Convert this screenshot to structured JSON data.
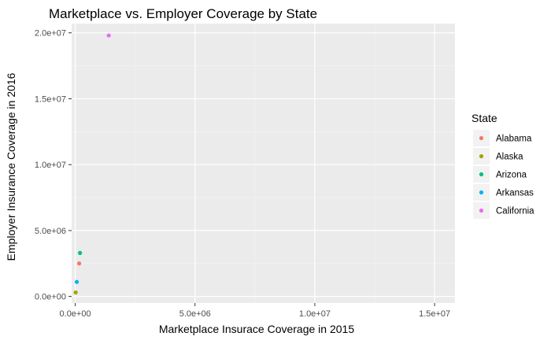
{
  "chart_data": {
    "type": "scatter",
    "title": "Marketplace vs. Employer Coverage by State",
    "xlabel": "Marketplace Insurace Coverage in 2015",
    "ylabel": "Employer Insurance Coverage in 2016",
    "xlim": [
      -150000,
      15850000
    ],
    "ylim": [
      -500000,
      20700000
    ],
    "x_ticks": [
      0,
      5000000,
      10000000,
      15000000
    ],
    "x_tick_labels": [
      "0.0e+00",
      "5.0e+06",
      "1.0e+07",
      "1.5e+07"
    ],
    "y_ticks": [
      0,
      5000000,
      10000000,
      15000000,
      20000000
    ],
    "y_tick_labels": [
      "0.0e+00",
      "5.0e+06",
      "1.0e+07",
      "1.5e+07",
      "2.0e+07"
    ],
    "grid": true,
    "legend": {
      "title": "State",
      "position": "right"
    },
    "series": [
      {
        "name": "Alabama",
        "color": "#F8766D",
        "points": [
          [
            165000,
            2500000
          ]
        ]
      },
      {
        "name": "Alaska",
        "color": "#A3A500",
        "points": [
          [
            18000,
            300000
          ]
        ]
      },
      {
        "name": "Arizona",
        "color": "#00BF7D",
        "points": [
          [
            200000,
            3300000
          ]
        ]
      },
      {
        "name": "Arkansas",
        "color": "#00B0F6",
        "points": [
          [
            65000,
            1100000
          ]
        ]
      },
      {
        "name": "California",
        "color": "#E76BF3",
        "points": [
          [
            1400000,
            19800000
          ]
        ]
      }
    ]
  }
}
